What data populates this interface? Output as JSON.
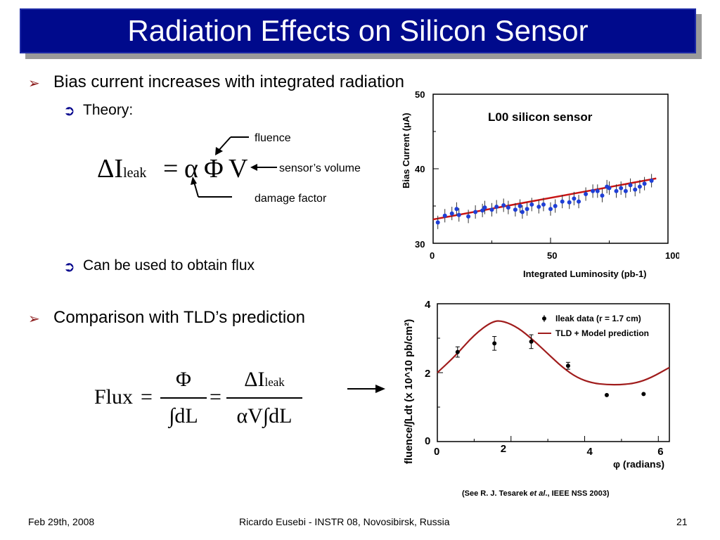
{
  "title": "Radiation Effects on Silicon Sensor",
  "bullets": {
    "b1": "Bias current increases with integrated radiation",
    "theory": "Theory:",
    "flux_use": "Can be used to obtain flux",
    "b2": "Comparison with TLD’s prediction"
  },
  "formula1": {
    "delta_i": "ΔI",
    "sub_leak": "leak",
    "eq": "=",
    "alpha": "α",
    "phi": "Φ",
    "v": "V",
    "label_fluence": "fluence",
    "label_volume": "sensor’s volume",
    "label_damage": "damage factor"
  },
  "formula2": {
    "flux": "Flux",
    "eq1": "=",
    "num1": "Φ",
    "den1": "∫dL",
    "eq2": "=",
    "num2": "ΔI",
    "num2_sub": "leak",
    "den2": "αV∫dL"
  },
  "chart_data": [
    {
      "type": "scatter",
      "title": "L00 silicon sensor",
      "xlabel": "Integrated Luminosity (pb-1)",
      "ylabel": "Bias Current (μA)",
      "xlim": [
        0,
        100
      ],
      "ylim": [
        30,
        50
      ],
      "xticks": [
        "0",
        "50",
        "100"
      ],
      "yticks": [
        "30",
        "40",
        "50"
      ],
      "series": [
        {
          "kind": "points",
          "x": [
            2,
            5,
            8,
            10,
            11,
            15,
            18,
            21,
            22,
            25,
            27,
            30,
            32,
            35,
            37,
            38,
            40,
            42,
            45,
            47,
            50,
            52,
            55,
            58,
            60,
            62,
            65,
            68,
            70,
            72,
            74,
            75,
            78,
            80,
            82,
            84,
            86,
            88,
            90,
            93
          ],
          "y": [
            32.8,
            33.7,
            34.0,
            34.6,
            33.8,
            33.6,
            34.2,
            34.4,
            34.8,
            34.5,
            34.9,
            35.1,
            34.8,
            34.5,
            35.0,
            34.2,
            34.6,
            35.2,
            34.9,
            35.2,
            34.6,
            35.0,
            35.6,
            35.5,
            36.0,
            35.6,
            36.6,
            37.0,
            37.0,
            36.4,
            37.6,
            37.4,
            37.0,
            37.4,
            37.0,
            37.8,
            37.2,
            37.6,
            38.0,
            38.4
          ],
          "yerr": 0.9
        },
        {
          "kind": "fit",
          "x": [
            0,
            95
          ],
          "y": [
            33.2,
            38.7
          ]
        }
      ]
    },
    {
      "type": "scatter",
      "title": "",
      "xlabel": "φ (radians)",
      "ylabel": "fluence/∫Ldt (x 10^10 pb/cm²)",
      "xlim": [
        0,
        6.3
      ],
      "ylim": [
        0,
        4
      ],
      "xticks": [
        "0",
        "2",
        "4",
        "6"
      ],
      "yticks": [
        "0",
        "2",
        "4"
      ],
      "legend": [
        "Ileak data (r = 1.7 cm)",
        "TLD + Model prediction"
      ],
      "series": [
        {
          "name": "Ileak data (r = 1.7 cm)",
          "x": [
            0.55,
            1.55,
            2.55,
            3.55,
            4.6,
            5.6
          ],
          "y": [
            2.6,
            2.85,
            2.9,
            2.2,
            1.35,
            1.38
          ],
          "yerr": [
            0.15,
            0.2,
            0.2,
            0.1,
            0,
            0
          ]
        },
        {
          "name": "TLD + Model prediction",
          "x": [
            0,
            0.5,
            1.0,
            1.5,
            1.8,
            2.2,
            2.6,
            3.0,
            3.4,
            3.8,
            4.2,
            4.6,
            5.0,
            5.4,
            5.8,
            6.3
          ],
          "y": [
            2.0,
            2.5,
            3.1,
            3.5,
            3.5,
            3.3,
            2.95,
            2.55,
            2.15,
            1.85,
            1.7,
            1.65,
            1.65,
            1.7,
            1.85,
            2.15
          ]
        }
      ]
    }
  ],
  "citation": {
    "prefix": "(See R. J. Tesarek ",
    "etal": "et al",
    "suffix": "., IEEE NSS 2003)"
  },
  "footer": {
    "date": "Feb 29th, 2008",
    "center": "Ricardo Eusebi - INSTR 08, Novosibirsk, Russia",
    "page": "21"
  },
  "colors": {
    "title_bg": "#000a8c",
    "bullet_caret": "#8b1a1a",
    "sub_arrow": "#00008b",
    "points1": "#1f3fd6",
    "fit_line": "#c81414",
    "curve2": "#a01c1c"
  }
}
